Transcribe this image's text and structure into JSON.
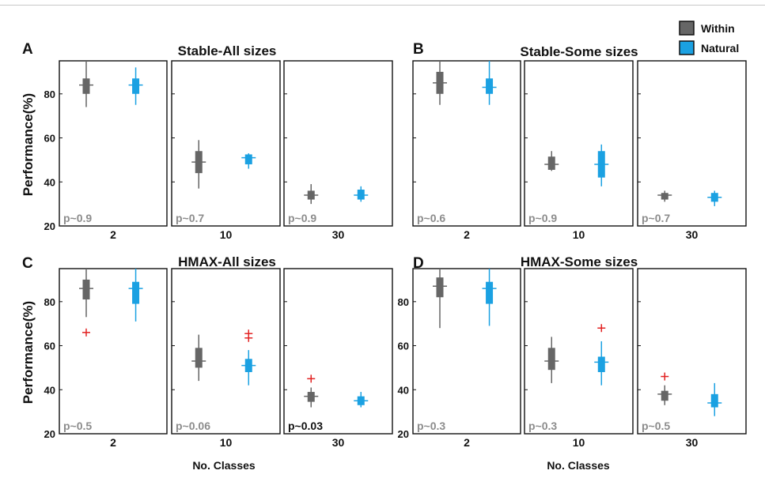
{
  "figure": {
    "ylabel": "Performance(%)",
    "xlabel": "No. Classes",
    "legend": {
      "placement": "top-right",
      "items": [
        {
          "label": "Within",
          "color": "#666666"
        },
        {
          "label": "Natural",
          "color": "#1ba1e2"
        }
      ]
    }
  },
  "chart_data": [
    {
      "type": "box",
      "panel": "A",
      "title": "Stable-All sizes",
      "ylim": [
        20,
        95
      ],
      "yticks": [
        20,
        40,
        60,
        80
      ],
      "grid": false,
      "subplots": [
        {
          "category": "2",
          "p_text": "p~0.9",
          "p_significant": false,
          "within": {
            "whislo": 74,
            "q1": 80,
            "med": 84,
            "q3": 87,
            "whishi": 95,
            "outliers": []
          },
          "natural": {
            "whislo": 75,
            "q1": 80,
            "med": 84,
            "q3": 87,
            "whishi": 92,
            "outliers": []
          }
        },
        {
          "category": "10",
          "p_text": "p~0.7",
          "p_significant": false,
          "within": {
            "whislo": 37,
            "q1": 44,
            "med": 49,
            "q3": 54,
            "whishi": 59,
            "outliers": []
          },
          "natural": {
            "whislo": 46,
            "q1": 48,
            "med": 51,
            "q3": 52.5,
            "whishi": 53,
            "outliers": []
          }
        },
        {
          "category": "30",
          "p_text": "p~0.9",
          "p_significant": false,
          "within": {
            "whislo": 30,
            "q1": 32,
            "med": 34,
            "q3": 36,
            "whishi": 39,
            "outliers": []
          },
          "natural": {
            "whislo": 31,
            "q1": 32,
            "med": 34,
            "q3": 36.5,
            "whishi": 38,
            "outliers": []
          }
        }
      ]
    },
    {
      "type": "box",
      "panel": "B",
      "title": "Stable-Some sizes",
      "ylim": [
        20,
        95
      ],
      "yticks": [
        20,
        40,
        60,
        80
      ],
      "grid": false,
      "subplots": [
        {
          "category": "2",
          "p_text": "p~0.6",
          "p_significant": false,
          "within": {
            "whislo": 75,
            "q1": 80,
            "med": 85,
            "q3": 90,
            "whishi": 95,
            "outliers": []
          },
          "natural": {
            "whislo": 75,
            "q1": 80,
            "med": 83,
            "q3": 87,
            "whishi": 95,
            "outliers": []
          }
        },
        {
          "category": "10",
          "p_text": "p~0.9",
          "p_significant": false,
          "within": {
            "whislo": 45,
            "q1": 45.5,
            "med": 48,
            "q3": 51.5,
            "whishi": 54,
            "outliers": []
          },
          "natural": {
            "whislo": 38,
            "q1": 42,
            "med": 48,
            "q3": 54,
            "whishi": 57,
            "outliers": []
          }
        },
        {
          "category": "30",
          "p_text": "p~0.7",
          "p_significant": false,
          "within": {
            "whislo": 31,
            "q1": 32,
            "med": 34,
            "q3": 35,
            "whishi": 36,
            "outliers": []
          },
          "natural": {
            "whislo": 29,
            "q1": 31,
            "med": 33,
            "q3": 35,
            "whishi": 36,
            "outliers": []
          }
        }
      ]
    },
    {
      "type": "box",
      "panel": "C",
      "title": "HMAX-All sizes",
      "ylim": [
        20,
        95
      ],
      "yticks": [
        20,
        40,
        60,
        80
      ],
      "grid": false,
      "subplots": [
        {
          "category": "2",
          "p_text": "p~0.5",
          "p_significant": false,
          "within": {
            "whislo": 73,
            "q1": 81,
            "med": 86,
            "q3": 90,
            "whishi": 95,
            "outliers": [
              66
            ]
          },
          "natural": {
            "whislo": 71,
            "q1": 79,
            "med": 86,
            "q3": 89,
            "whishi": 95,
            "outliers": []
          }
        },
        {
          "category": "10",
          "p_text": "p~0.06",
          "p_significant": false,
          "within": {
            "whislo": 44,
            "q1": 50,
            "med": 53,
            "q3": 59,
            "whishi": 65,
            "outliers": []
          },
          "natural": {
            "whislo": 42,
            "q1": 48,
            "med": 51,
            "q3": 54,
            "whishi": 58,
            "outliers": [
              63.5,
              65.5
            ]
          }
        },
        {
          "category": "30",
          "p_text": "p~0.03",
          "p_significant": true,
          "within": {
            "whislo": 32,
            "q1": 34.5,
            "med": 37,
            "q3": 39,
            "whishi": 41,
            "outliers": [
              45
            ]
          },
          "natural": {
            "whislo": 32,
            "q1": 33,
            "med": 35,
            "q3": 37,
            "whishi": 39,
            "outliers": []
          }
        }
      ]
    },
    {
      "type": "box",
      "panel": "D",
      "title": "HMAX-Some sizes",
      "ylim": [
        20,
        95
      ],
      "yticks": [
        20,
        40,
        60,
        80
      ],
      "grid": false,
      "subplots": [
        {
          "category": "2",
          "p_text": "p~0.3",
          "p_significant": false,
          "within": {
            "whislo": 68,
            "q1": 82,
            "med": 87,
            "q3": 91,
            "whishi": 95,
            "outliers": []
          },
          "natural": {
            "whislo": 69,
            "q1": 79,
            "med": 86,
            "q3": 89,
            "whishi": 95,
            "outliers": []
          }
        },
        {
          "category": "10",
          "p_text": "p~0.3",
          "p_significant": false,
          "within": {
            "whislo": 43,
            "q1": 49,
            "med": 53,
            "q3": 59,
            "whishi": 64,
            "outliers": []
          },
          "natural": {
            "whislo": 42,
            "q1": 48,
            "med": 52.5,
            "q3": 55,
            "whishi": 62,
            "outliers": [
              68
            ]
          }
        },
        {
          "category": "30",
          "p_text": "p~0.5",
          "p_significant": false,
          "within": {
            "whislo": 33,
            "q1": 35,
            "med": 38,
            "q3": 39.5,
            "whishi": 42,
            "outliers": [
              46
            ]
          },
          "natural": {
            "whislo": 28,
            "q1": 32,
            "med": 34,
            "q3": 38,
            "whishi": 43,
            "outliers": []
          }
        }
      ]
    }
  ]
}
